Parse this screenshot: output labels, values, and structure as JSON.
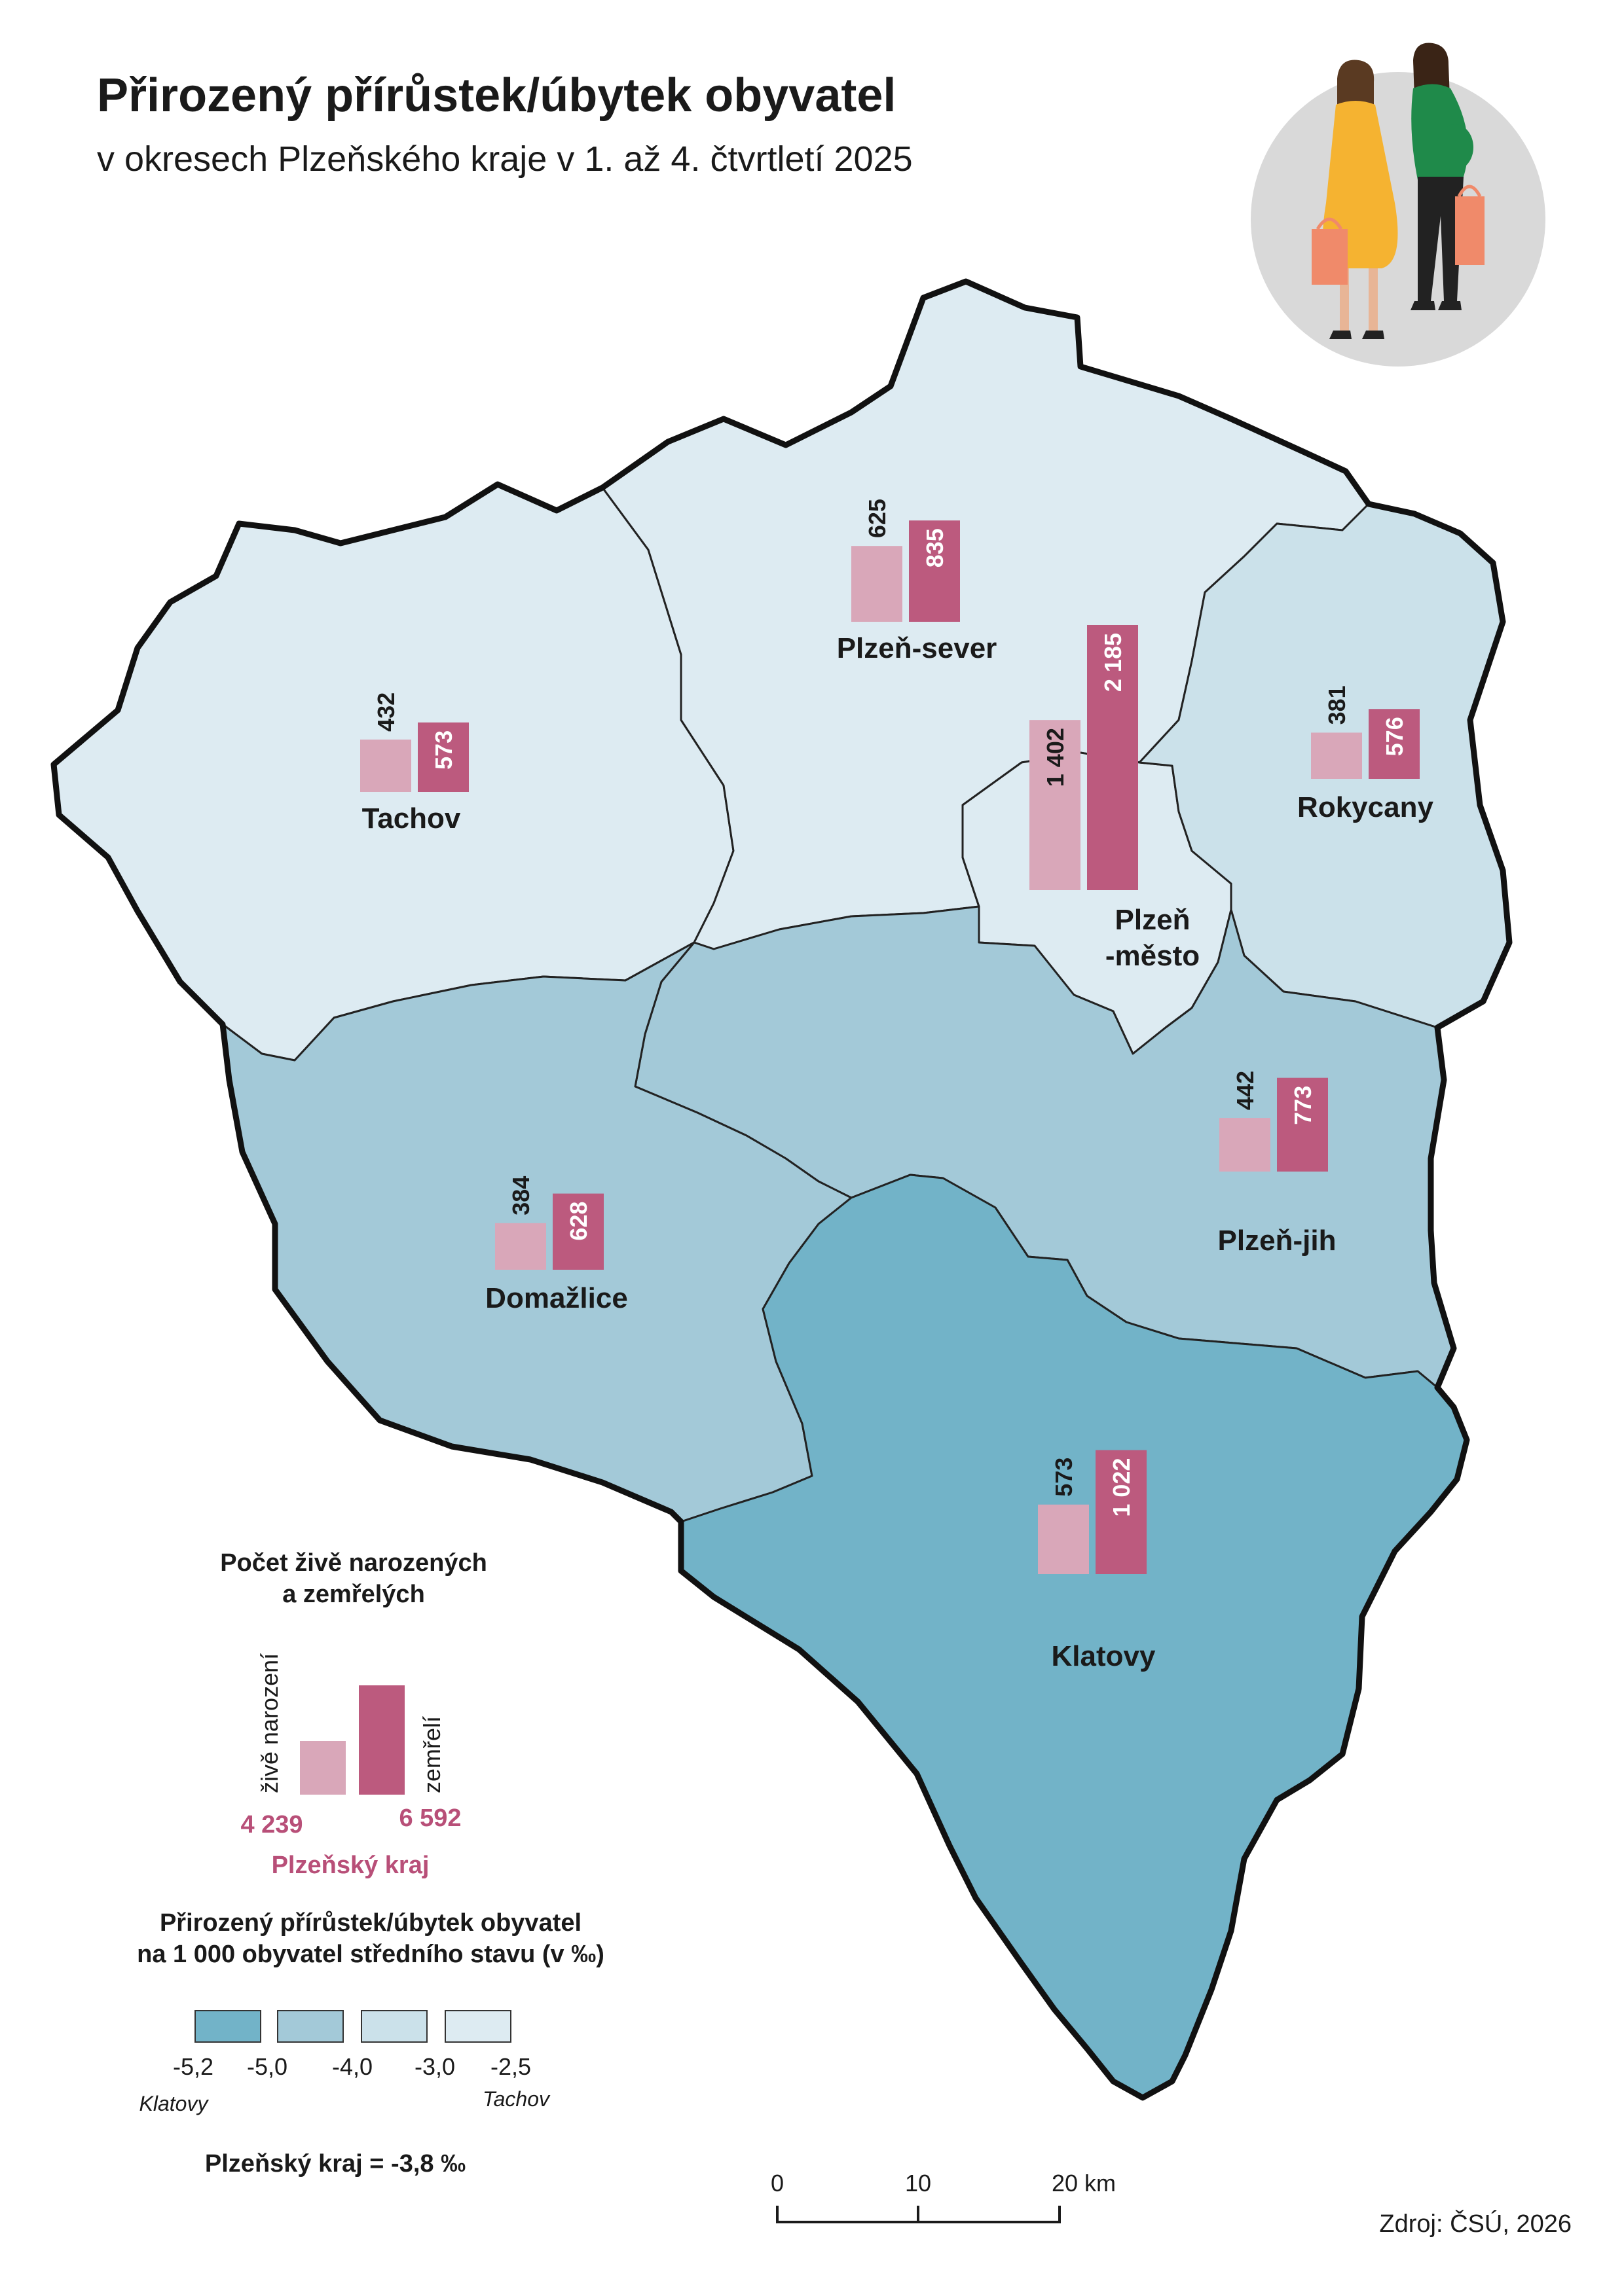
{
  "title": "Přirozený přírůstek/úbytek obyvatel",
  "subtitle": "v okresech Plzeňského kraje v 1. až 4. čtvrtletí 2025",
  "colors": {
    "born": "#d9a7b9",
    "died": "#bc5a7e",
    "class_1": "#72b3c8",
    "class_2": "#a3c9d8",
    "class_3": "#cbe1ea",
    "class_4": "#ddebf2"
  },
  "districts": [
    {
      "name": "Tachov",
      "born": 432,
      "born_label": "432",
      "died": 573,
      "died_label": "573",
      "rate_class": 4
    },
    {
      "name": "Plzeň-sever",
      "born": 625,
      "born_label": "625",
      "died": 835,
      "died_label": "835",
      "rate_class": 4
    },
    {
      "name": "Plzeň",
      "name2": "-město",
      "born": 1402,
      "born_label": "1 402",
      "died": 2185,
      "died_label": "2 185",
      "rate_class": 4
    },
    {
      "name": "Rokycany",
      "born": 381,
      "born_label": "381",
      "died": 576,
      "died_label": "576",
      "rate_class": 3
    },
    {
      "name": "Domažlice",
      "born": 384,
      "born_label": "384",
      "died": 628,
      "died_label": "628",
      "rate_class": 2
    },
    {
      "name": "Plzeň-jih",
      "born": 442,
      "born_label": "442",
      "died": 773,
      "died_label": "773",
      "rate_class": 2
    },
    {
      "name": "Klatovy",
      "born": 573,
      "born_label": "573",
      "died": 1022,
      "died_label": "1 022",
      "rate_class": 1
    }
  ],
  "legend_bars": {
    "title_line1": "Počet živě narozených",
    "title_line2": "a zemřelých",
    "born_label": "živě narození",
    "died_label": "zemřelí",
    "born_value": "4 239",
    "died_value": "6 592",
    "region": "Plzeňský kraj"
  },
  "legend_choropleth": {
    "title_line1": "Přirozený přírůstek/úbytek obyvatel",
    "title_line2": "na 1 000 obyvatel středního stavu (v ‰)",
    "breaks": [
      "-5,2",
      "-5,0",
      "-4,0",
      "-3,0",
      "-2,5"
    ],
    "min_label": "Klatovy",
    "max_label": "Tachov",
    "region_value": "Plzeňský kraj = -3,8 ‰"
  },
  "scale": {
    "ticks": [
      "0",
      "10",
      "20 km"
    ]
  },
  "source": "Zdroj: ČSÚ, 2026",
  "illustration": "two-women-shopping-pregnant-icon"
}
